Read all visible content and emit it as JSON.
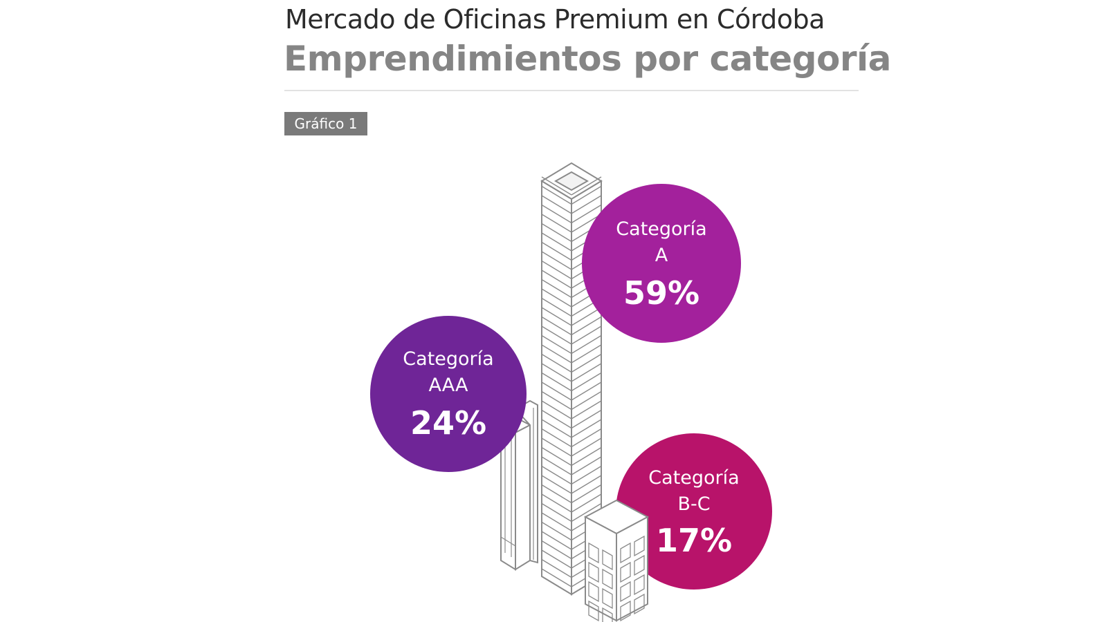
{
  "header": {
    "title": "Mercado de Oficinas Premium en Córdoba",
    "subtitle": "Emprendimientos por categoría",
    "badge": "Gráfico 1"
  },
  "chart_data": {
    "type": "pie",
    "title": "Mercado de Oficinas Premium en Córdoba",
    "subtitle": "Emprendimientos por categoría",
    "unit": "%",
    "slices": [
      {
        "category": "Categoría",
        "sub": "A",
        "label": "59%",
        "value": 59,
        "color": "#a3219c"
      },
      {
        "category": "Categoría",
        "sub": "AAA",
        "label": "24%",
        "value": 24,
        "color": "#6f2597"
      },
      {
        "category": "Categoría",
        "sub": "B-C",
        "label": "17%",
        "value": 17,
        "color": "#b8136a"
      }
    ]
  }
}
